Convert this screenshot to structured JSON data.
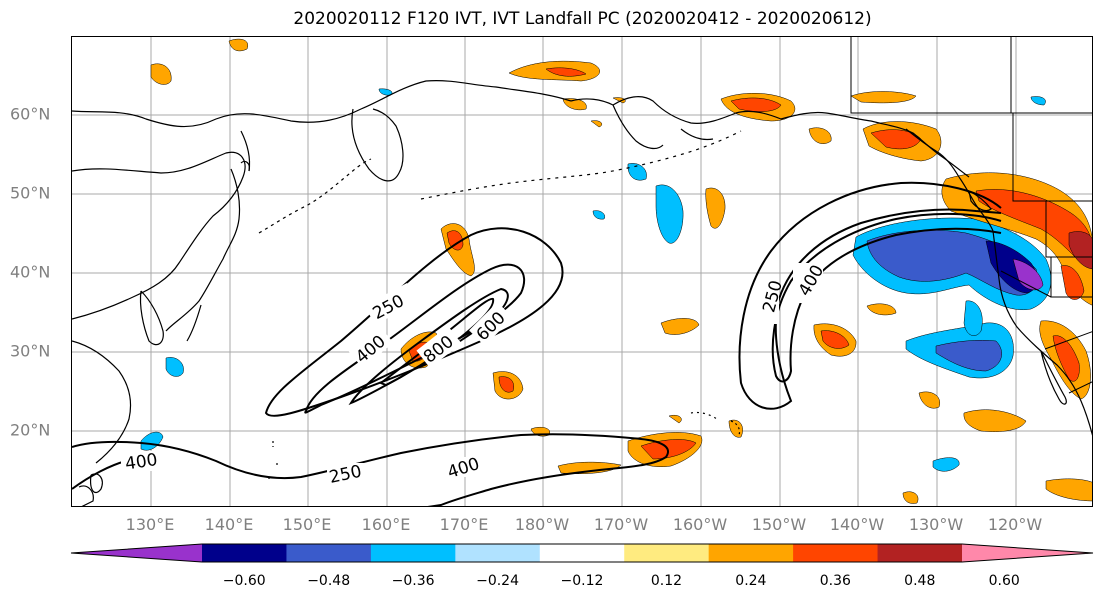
{
  "title": "2020020112 F120 IVT, IVT Landfall PC (2020020412 - 2020020612)",
  "map": {
    "lat_labels": [
      "60°N",
      "50°N",
      "40°N",
      "30°N",
      "20°N"
    ],
    "lon_labels": [
      "130°E",
      "140°E",
      "150°E",
      "160°E",
      "170°E",
      "180°W",
      "170°W",
      "160°W",
      "150°W",
      "140°W",
      "130°W",
      "120°W"
    ],
    "contour_labels": [
      "250",
      "400",
      "600",
      "800",
      "250",
      "400",
      "400",
      "250",
      "400"
    ],
    "grid": true
  },
  "colorbar": {
    "ticks": [
      "−0.60",
      "−0.48",
      "−0.36",
      "−0.24",
      "−0.12",
      "0.12",
      "0.24",
      "0.36",
      "0.48",
      "0.60"
    ],
    "colors": [
      "#9932CC",
      "#00008B",
      "#3A5BCB",
      "#00BFFF",
      "#B0E2FF",
      "#FFFFFF",
      "#FFEB80",
      "#FFA500",
      "#FF4500",
      "#B22222",
      "#FF88AA"
    ],
    "extend": "both"
  }
}
